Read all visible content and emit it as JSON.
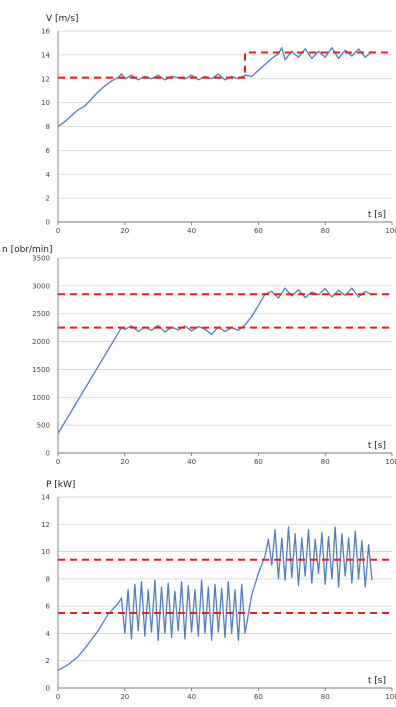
{
  "colors": {
    "series": "#4f7fc0",
    "reference": "#e02020",
    "grid": "#d2d2d2",
    "axis": "#7a7a7a"
  },
  "chart_data": [
    {
      "type": "line",
      "ylabel": "V [m/s]",
      "xlabel": "t [s]",
      "xlim": [
        0,
        100
      ],
      "ylim": [
        0,
        16
      ],
      "xticks": [
        "0",
        "20",
        "40",
        "60",
        "80",
        "100"
      ],
      "yticks": [
        "0",
        "2",
        "4",
        "6",
        "8",
        "10",
        "12",
        "14",
        "16"
      ],
      "grid": true,
      "series": [
        {
          "style": "solid",
          "color": "#4f7fc0",
          "x": [
            0,
            2,
            4,
            6,
            8,
            10,
            12,
            14,
            16,
            18,
            19,
            20,
            22,
            24,
            26,
            28,
            30,
            32,
            34,
            36,
            38,
            40,
            42,
            44,
            46,
            48,
            50,
            52,
            54,
            56,
            58,
            60,
            62,
            64,
            66,
            67,
            68,
            70,
            72,
            74,
            76,
            78,
            80,
            82,
            84,
            86,
            88,
            90,
            92,
            94
          ],
          "y": [
            8.0,
            8.4,
            8.9,
            9.4,
            9.7,
            10.3,
            10.9,
            11.4,
            11.8,
            12.1,
            12.4,
            12.0,
            12.3,
            11.9,
            12.2,
            12.0,
            12.3,
            11.9,
            12.2,
            12.1,
            12.0,
            12.3,
            11.9,
            12.2,
            12.0,
            12.4,
            11.9,
            12.2,
            12.0,
            12.3,
            12.2,
            12.7,
            13.2,
            13.7,
            14.1,
            14.6,
            13.6,
            14.3,
            13.8,
            14.5,
            13.7,
            14.3,
            13.8,
            14.6,
            13.7,
            14.4,
            13.9,
            14.5,
            13.8,
            14.3
          ]
        },
        {
          "style": "dashed",
          "color": "#e02020",
          "x": [
            0,
            56,
            56,
            100
          ],
          "y": [
            12.1,
            12.1,
            14.2,
            14.2
          ]
        }
      ]
    },
    {
      "type": "line",
      "ylabel": "n [obr/min]",
      "xlabel": "t [s]",
      "xlim": [
        0,
        100
      ],
      "ylim": [
        0,
        3500
      ],
      "xticks": [
        "0",
        "20",
        "40",
        "60",
        "80",
        "100"
      ],
      "yticks": [
        "0",
        "500",
        "1000",
        "1500",
        "2000",
        "2500",
        "3000",
        "3500"
      ],
      "grid": true,
      "series": [
        {
          "style": "solid",
          "color": "#4f7fc0",
          "x": [
            0,
            19,
            20,
            22,
            24,
            26,
            28,
            30,
            32,
            34,
            36,
            38,
            40,
            42,
            44,
            46,
            48,
            50,
            52,
            54,
            56,
            58,
            60,
            62,
            64,
            66,
            68,
            70,
            72,
            74,
            76,
            78,
            80,
            82,
            84,
            86,
            88,
            90,
            92,
            94
          ],
          "y": [
            350,
            2250,
            2220,
            2280,
            2180,
            2260,
            2200,
            2290,
            2170,
            2260,
            2210,
            2280,
            2190,
            2270,
            2220,
            2130,
            2260,
            2180,
            2250,
            2200,
            2300,
            2450,
            2650,
            2850,
            2900,
            2780,
            2960,
            2820,
            2930,
            2790,
            2890,
            2840,
            2950,
            2800,
            2920,
            2830,
            2960,
            2800,
            2900,
            2840
          ]
        },
        {
          "style": "dashed",
          "color": "#e02020",
          "x": [
            0,
            100
          ],
          "y": [
            2850,
            2850
          ]
        },
        {
          "style": "dashed",
          "color": "#e02020",
          "x": [
            0,
            100
          ],
          "y": [
            2250,
            2250
          ]
        }
      ]
    },
    {
      "type": "line",
      "ylabel": "P [kW]",
      "xlabel": "t [s]",
      "xlim": [
        0,
        100
      ],
      "ylim": [
        0,
        14
      ],
      "xticks": [
        "0",
        "20",
        "40",
        "60",
        "80",
        "100"
      ],
      "yticks": [
        "0",
        "2",
        "4",
        "6",
        "8",
        "10",
        "12",
        "14"
      ],
      "grid": true,
      "series": [
        {
          "style": "solid",
          "color": "#4f7fc0",
          "x": [
            0,
            3,
            6,
            9,
            12,
            15,
            18,
            19,
            20,
            21,
            22,
            23,
            24,
            25,
            26,
            27,
            28,
            29,
            30,
            31,
            32,
            33,
            34,
            35,
            36,
            37,
            38,
            39,
            40,
            41,
            42,
            43,
            44,
            45,
            46,
            47,
            48,
            49,
            50,
            51,
            52,
            53,
            54,
            55,
            56,
            58,
            60,
            62,
            63,
            64,
            65,
            66,
            67,
            68,
            69,
            70,
            71,
            72,
            73,
            74,
            75,
            76,
            77,
            78,
            79,
            80,
            81,
            82,
            83,
            84,
            85,
            86,
            87,
            88,
            89,
            90,
            91,
            92,
            93,
            94
          ],
          "y": [
            1.3,
            1.7,
            2.3,
            3.2,
            4.2,
            5.4,
            6.2,
            6.6,
            4.0,
            7.2,
            3.6,
            7.6,
            4.2,
            7.8,
            3.8,
            7.2,
            4.1,
            7.9,
            3.5,
            7.4,
            4.0,
            7.7,
            3.7,
            7.1,
            4.2,
            7.8,
            3.6,
            7.5,
            4.1,
            7.2,
            3.8,
            7.9,
            4.0,
            7.4,
            3.5,
            7.6,
            4.1,
            7.3,
            3.7,
            7.8,
            4.0,
            7.2,
            3.5,
            7.6,
            4.0,
            6.8,
            8.4,
            9.7,
            10.9,
            9.0,
            11.6,
            8.0,
            11.0,
            7.9,
            11.8,
            8.1,
            11.3,
            7.5,
            11.0,
            8.2,
            11.6,
            7.7,
            10.9,
            8.4,
            11.4,
            7.6,
            11.1,
            8.0,
            11.8,
            7.4,
            11.3,
            8.2,
            11.0,
            7.7,
            11.5,
            8.0,
            10.8,
            7.4,
            10.5,
            7.9
          ]
        },
        {
          "style": "dashed",
          "color": "#e02020",
          "x": [
            0,
            100
          ],
          "y": [
            9.4,
            9.4
          ]
        },
        {
          "style": "dashed",
          "color": "#e02020",
          "x": [
            0,
            100
          ],
          "y": [
            5.5,
            5.5
          ]
        }
      ]
    }
  ]
}
